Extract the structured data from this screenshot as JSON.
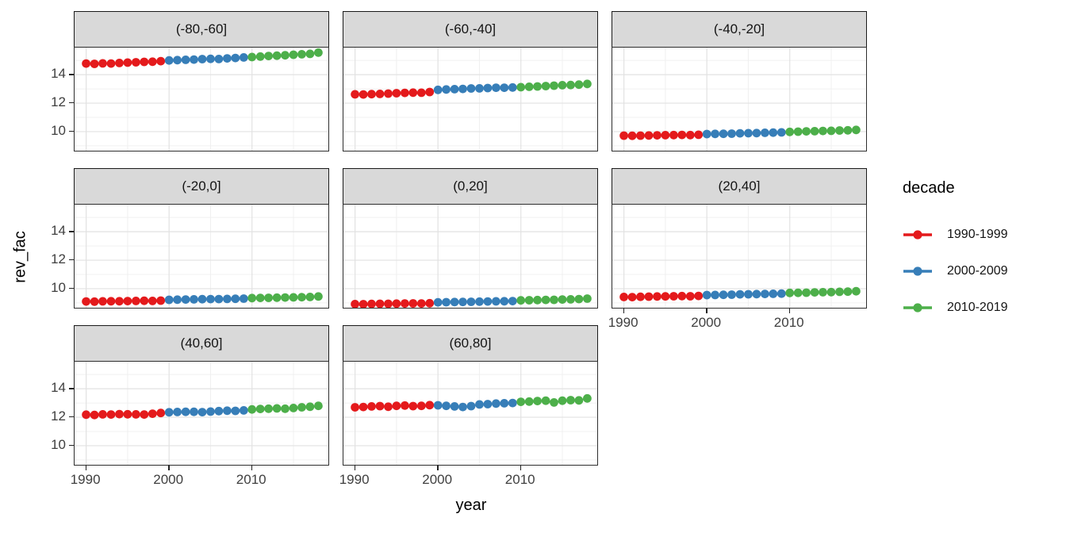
{
  "chart_data": {
    "type": "scatter",
    "xlabel": "year",
    "ylabel": "rev_fac",
    "legend_title": "decade",
    "legend_position": "right",
    "grid": true,
    "x_ticks": [
      1990,
      2000,
      2010
    ],
    "y_ticks": [
      14,
      12,
      10
    ],
    "x_minor_ticks": [
      1995,
      2005,
      2015
    ],
    "y_minor_ticks": [
      9,
      11,
      13,
      15
    ],
    "x_domain": [
      1988.6,
      2019.4
    ],
    "y_domain": [
      8.55,
      15.9
    ],
    "x": [
      1990,
      1991,
      1992,
      1993,
      1994,
      1995,
      1996,
      1997,
      1998,
      1999,
      2000,
      2001,
      2002,
      2003,
      2004,
      2005,
      2006,
      2007,
      2008,
      2009,
      2010,
      2011,
      2012,
      2013,
      2014,
      2015,
      2016,
      2017,
      2018
    ],
    "series_groups": [
      {
        "name": "1990-1999",
        "color": "#E41A1C",
        "year_start": 1990,
        "year_end": 1999
      },
      {
        "name": "2000-2009",
        "color": "#377EB8",
        "year_start": 2000,
        "year_end": 2009
      },
      {
        "name": "2010-2019",
        "color": "#4DAF4A",
        "year_start": 2010,
        "year_end": 2019
      }
    ],
    "facets": [
      {
        "label": "(-80,-60]",
        "values": [
          14.78,
          14.76,
          14.79,
          14.78,
          14.82,
          14.85,
          14.87,
          14.9,
          14.91,
          14.95,
          15.0,
          15.02,
          15.04,
          15.06,
          15.09,
          15.11,
          15.1,
          15.14,
          15.17,
          15.21,
          15.24,
          15.27,
          15.31,
          15.33,
          15.36,
          15.4,
          15.43,
          15.46,
          15.55
        ]
      },
      {
        "label": "(-60,-40]",
        "values": [
          12.62,
          12.61,
          12.63,
          12.65,
          12.67,
          12.7,
          12.72,
          12.74,
          12.73,
          12.78,
          12.93,
          12.96,
          12.98,
          13.0,
          13.03,
          13.04,
          13.06,
          13.08,
          13.08,
          13.1,
          13.12,
          13.15,
          13.17,
          13.2,
          13.23,
          13.26,
          13.27,
          13.3,
          13.35
        ]
      },
      {
        "label": "(-40,-20]",
        "values": [
          9.72,
          9.71,
          9.72,
          9.73,
          9.74,
          9.75,
          9.76,
          9.77,
          9.76,
          9.78,
          9.83,
          9.84,
          9.85,
          9.86,
          9.88,
          9.89,
          9.9,
          9.92,
          9.93,
          9.95,
          9.98,
          10.0,
          10.02,
          10.03,
          10.05,
          10.06,
          10.08,
          10.09,
          10.12
        ]
      },
      {
        "label": "(-20,0]",
        "values": [
          9.1,
          9.09,
          9.11,
          9.12,
          9.12,
          9.13,
          9.14,
          9.15,
          9.14,
          9.16,
          9.22,
          9.23,
          9.24,
          9.25,
          9.26,
          9.27,
          9.27,
          9.28,
          9.29,
          9.3,
          9.34,
          9.35,
          9.36,
          9.37,
          9.38,
          9.39,
          9.4,
          9.42,
          9.45
        ]
      },
      {
        "label": "(0,20]",
        "values": [
          8.92,
          8.91,
          8.93,
          8.94,
          8.94,
          8.95,
          8.96,
          8.97,
          8.96,
          8.98,
          9.04,
          9.05,
          9.06,
          9.07,
          9.08,
          9.09,
          9.1,
          9.11,
          9.12,
          9.13,
          9.18,
          9.19,
          9.2,
          9.21,
          9.22,
          9.24,
          9.25,
          9.27,
          9.3
        ]
      },
      {
        "label": "(20,40]",
        "values": [
          9.42,
          9.41,
          9.43,
          9.44,
          9.45,
          9.46,
          9.47,
          9.48,
          9.47,
          9.49,
          9.55,
          9.56,
          9.57,
          9.58,
          9.6,
          9.61,
          9.62,
          9.63,
          9.64,
          9.65,
          9.7,
          9.71,
          9.72,
          9.74,
          9.75,
          9.76,
          9.78,
          9.79,
          9.82
        ]
      },
      {
        "label": "(40,60]",
        "values": [
          12.18,
          12.16,
          12.2,
          12.19,
          12.22,
          12.21,
          12.2,
          12.19,
          12.25,
          12.3,
          12.35,
          12.37,
          12.38,
          12.38,
          12.36,
          12.4,
          12.43,
          12.46,
          12.45,
          12.48,
          12.55,
          12.58,
          12.6,
          12.62,
          12.6,
          12.65,
          12.7,
          12.74,
          12.8
        ]
      },
      {
        "label": "(60,80]",
        "values": [
          12.7,
          12.72,
          12.76,
          12.78,
          12.74,
          12.8,
          12.82,
          12.78,
          12.8,
          12.85,
          12.84,
          12.8,
          12.76,
          12.72,
          12.78,
          12.9,
          12.92,
          12.96,
          12.98,
          13.0,
          13.08,
          13.1,
          13.14,
          13.16,
          13.04,
          13.16,
          13.2,
          13.18,
          13.32
        ]
      }
    ]
  },
  "colors": {
    "strip_background": "#d9d9d9",
    "panel_border": "#2e2e2e",
    "grid_major": "#e2e2e2",
    "grid_minor": "#f0f0f0",
    "tick_label": "#3f3f3f",
    "red": "#E41A1C",
    "blue": "#377EB8",
    "green": "#4DAF4A"
  }
}
